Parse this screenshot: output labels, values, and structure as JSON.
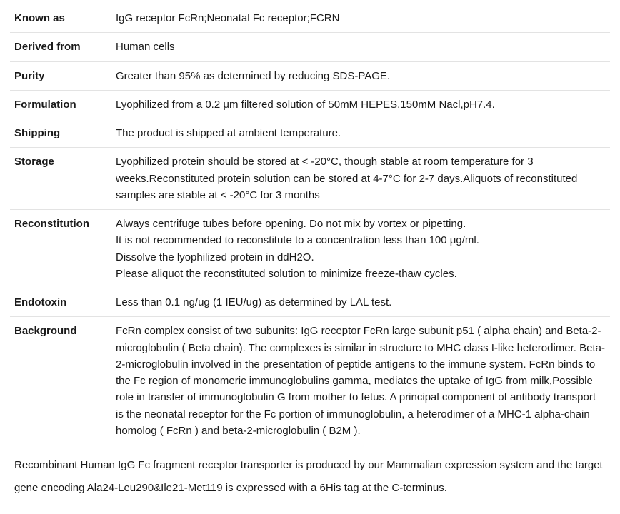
{
  "rows": {
    "known_as": {
      "label": "Known as",
      "value": "IgG receptor FcRn;Neonatal Fc receptor;FCRN"
    },
    "derived_from": {
      "label": "Derived from",
      "value": "Human cells"
    },
    "purity": {
      "label": "Purity",
      "value": "Greater than 95% as determined by reducing SDS-PAGE."
    },
    "formulation": {
      "label": "Formulation",
      "value": "Lyophilized from a 0.2 μm filtered solution of 50mM HEPES,150mM Nacl,pH7.4."
    },
    "shipping": {
      "label": "Shipping",
      "value": "The product is shipped at ambient temperature."
    },
    "storage": {
      "label": "Storage",
      "value": "Lyophilized protein should be stored at < -20°C, though stable at room temperature for 3 weeks.Reconstituted protein solution can be stored at 4-7°C for 2-7 days.Aliquots of reconstituted samples are stable at < -20°C for 3 months"
    },
    "reconstitution": {
      "label": "Reconstitution",
      "line1": "Always centrifuge tubes before opening. Do not mix by vortex or pipetting.",
      "line2": "It is not recommended to reconstitute to a concentration less than 100 μg/ml.",
      "line3": "Dissolve the lyophilized protein in ddH2O.",
      "line4": "Please aliquot the reconstituted solution to minimize freeze-thaw cycles."
    },
    "endotoxin": {
      "label": "Endotoxin",
      "value": "Less than 0.1 ng/ug (1 IEU/ug) as determined by LAL test."
    },
    "background": {
      "label": "Background",
      "value": "FcRn complex consist of two subunits: IgG receptor FcRn large subunit p51 ( alpha chain) and Beta-2-microglobulin ( Beta chain). The complexes is similar in structure to MHC class I-like heterodimer. Beta-2-microglobulin involved in the presentation of peptide antigens to the immune system. FcRn binds to the Fc region of monomeric immunoglobulins gamma, mediates the uptake of IgG from milk,Possible role in transfer of immunoglobulin G from mother to fetus. A principal component of antibody transport is the neonatal receptor for the Fc portion of immunoglobulin, a heterodimer of a MHC-1 alpha-chain homolog ( FcRn ) and beta-2-microglobulin ( B2M )."
    }
  },
  "footer": "Recombinant Human IgG Fc fragment receptor transporter is produced by our Mammalian expression system and the target gene encoding Ala24-Leu290&Ile21-Met119 is expressed with a 6His tag at the C-terminus."
}
